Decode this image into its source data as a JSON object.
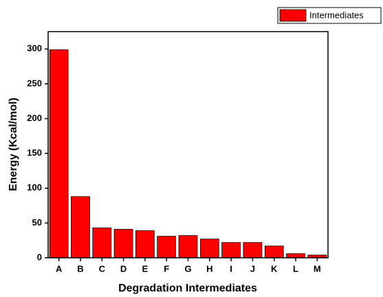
{
  "chart_data": {
    "type": "bar",
    "x_label": "Degradation Intermediates",
    "y_label": "Energy (Kcal/mol)",
    "categories": [
      "A",
      "B",
      "C",
      "D",
      "E",
      "F",
      "G",
      "H",
      "I",
      "J",
      "K",
      "L",
      "M"
    ],
    "series": [
      {
        "name": "Intermediates",
        "color": "#ff0000",
        "values": [
          299,
          88,
          43,
          41,
          39,
          31,
          32,
          27,
          22,
          22,
          17,
          6,
          4
        ]
      }
    ],
    "ylim": [
      0,
      325
    ],
    "yticks": [
      0,
      50,
      100,
      150,
      200,
      250,
      300
    ],
    "grid": false,
    "legend": "top-right"
  }
}
